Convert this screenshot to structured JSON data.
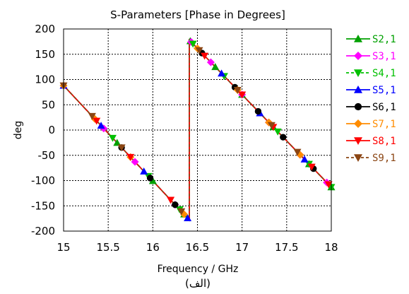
{
  "chart_data": {
    "type": "line",
    "title": "S-Parameters [Phase in Degrees]",
    "xlabel": "Frequency / GHz",
    "ylabel": "deg",
    "caption": "(الف)",
    "xlim": [
      15,
      18
    ],
    "ylim": [
      -200,
      200
    ],
    "xticks": [
      15,
      15.5,
      16,
      16.5,
      17,
      17.5,
      18
    ],
    "xtick_labels": [
      "15",
      "15.5",
      "16",
      "16.5",
      "17",
      "17.5",
      "18"
    ],
    "yticks": [
      200,
      150,
      100,
      50,
      0,
      -50,
      -100,
      -150,
      -200
    ],
    "ytick_labels": [
      "200",
      "150",
      "100",
      "50",
      "0",
      "-50",
      "-100",
      "-150",
      "-200"
    ],
    "grid": true,
    "legend_position": "right",
    "curve": {
      "segment1": {
        "x": [
          15.0,
          16.41
        ],
        "y": [
          88,
          -178
        ]
      },
      "segment2": {
        "x": [
          16.41,
          18.0
        ],
        "y": [
          178,
          -113
        ]
      }
    },
    "series": [
      {
        "name": "S2,1",
        "color": "#00a000",
        "dash": "solid",
        "marker": "triangle-up",
        "markers_x": [
          15.6,
          16.0,
          16.35,
          16.42,
          16.7,
          17.0,
          17.35,
          17.75,
          18.0
        ]
      },
      {
        "name": "S3,1",
        "color": "#ff00ff",
        "dash": "solid",
        "marker": "diamond",
        "markers_x": [
          15.45,
          15.8,
          16.25,
          16.43,
          16.65,
          17.0,
          17.3,
          17.65,
          17.95
        ]
      },
      {
        "name": "S4,1",
        "color": "#00c000",
        "dash": "dashed",
        "marker": "triangle-down",
        "markers_x": [
          15.55,
          15.95,
          16.3,
          16.45,
          16.8,
          17.0,
          17.4,
          17.75,
          18.0
        ]
      },
      {
        "name": "S5,1",
        "color": "#0000ff",
        "dash": "solid",
        "marker": "triangle-up",
        "markers_x": [
          15.0,
          15.42,
          15.9,
          16.39,
          16.77,
          17.2,
          17.7
        ]
      },
      {
        "name": "S6,1",
        "color": "#000000",
        "dash": "solid",
        "marker": "circle",
        "markers_x": [
          15.65,
          15.97,
          16.25,
          16.55,
          16.92,
          17.18,
          17.46,
          17.8
        ]
      },
      {
        "name": "S7,1",
        "color": "#ff8c00",
        "dash": "solid",
        "marker": "diamond",
        "markers_x": [
          15.0,
          15.35,
          15.75,
          16.35,
          16.5,
          16.95,
          17.3,
          17.65
        ]
      },
      {
        "name": "S8,1",
        "color": "#ff0000",
        "dash": "solid",
        "marker": "triangle-down",
        "markers_x": [
          15.37,
          15.75,
          16.2,
          16.58,
          17.0,
          17.35,
          17.78,
          17.97
        ]
      },
      {
        "name": "S9,1",
        "color": "#8b4513",
        "dash": "dashed",
        "marker": "triangle-down",
        "markers_x": [
          15.0,
          15.32,
          15.65,
          16.32,
          16.52,
          16.95,
          17.33,
          17.62
        ]
      }
    ]
  }
}
